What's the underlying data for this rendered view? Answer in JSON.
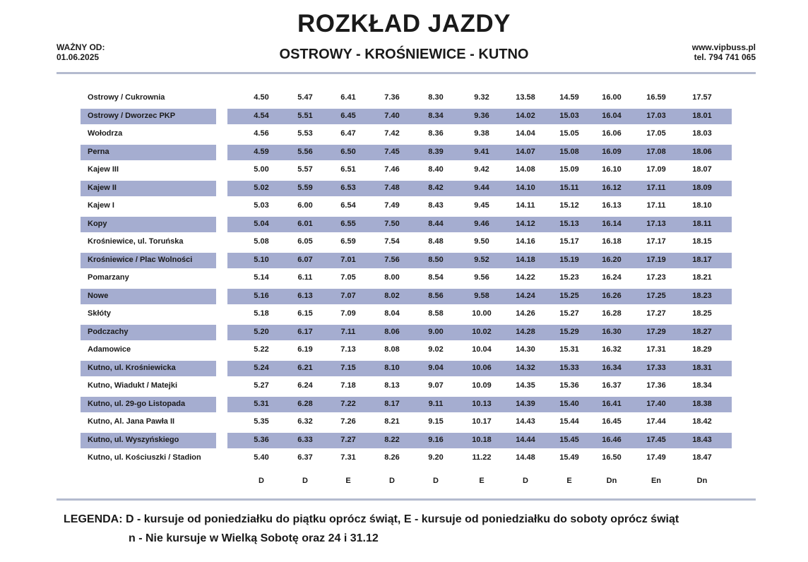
{
  "header": {
    "title": "ROZKŁAD JAZDY",
    "route": "OSTROWY - KROŚNIEWICE - KUTNO",
    "valid_label": "WAŻNY OD:",
    "valid_date": "01.06.2025",
    "website": "www.vipbuss.pl",
    "phone": "tel. 794 741 065"
  },
  "colors": {
    "row_shade": "#a5add0",
    "rule": "#b4bbcf"
  },
  "timetable": {
    "rows": [
      {
        "stop": "Ostrowy / Cukrownia",
        "times": [
          "4.50",
          "5.47",
          "6.41",
          "7.36",
          "8.30",
          "9.32",
          "13.58",
          "14.59",
          "16.00",
          "16.59",
          "17.57"
        ]
      },
      {
        "stop": "Ostrowy / Dworzec PKP",
        "times": [
          "4.54",
          "5.51",
          "6.45",
          "7.40",
          "8.34",
          "9.36",
          "14.02",
          "15.03",
          "16.04",
          "17.03",
          "18.01"
        ]
      },
      {
        "stop": "Wołodrza",
        "times": [
          "4.56",
          "5.53",
          "6.47",
          "7.42",
          "8.36",
          "9.38",
          "14.04",
          "15.05",
          "16.06",
          "17.05",
          "18.03"
        ]
      },
      {
        "stop": "Perna",
        "times": [
          "4.59",
          "5.56",
          "6.50",
          "7.45",
          "8.39",
          "9.41",
          "14.07",
          "15.08",
          "16.09",
          "17.08",
          "18.06"
        ]
      },
      {
        "stop": "Kajew III",
        "times": [
          "5.00",
          "5.57",
          "6.51",
          "7.46",
          "8.40",
          "9.42",
          "14.08",
          "15.09",
          "16.10",
          "17.09",
          "18.07"
        ]
      },
      {
        "stop": "Kajew II",
        "times": [
          "5.02",
          "5.59",
          "6.53",
          "7.48",
          "8.42",
          "9.44",
          "14.10",
          "15.11",
          "16.12",
          "17.11",
          "18.09"
        ]
      },
      {
        "stop": "Kajew I",
        "times": [
          "5.03",
          "6.00",
          "6.54",
          "7.49",
          "8.43",
          "9.45",
          "14.11",
          "15.12",
          "16.13",
          "17.11",
          "18.10"
        ]
      },
      {
        "stop": "Kopy",
        "times": [
          "5.04",
          "6.01",
          "6.55",
          "7.50",
          "8.44",
          "9.46",
          "14.12",
          "15.13",
          "16.14",
          "17.13",
          "18.11"
        ]
      },
      {
        "stop": "Krośniewice, ul. Toruńska",
        "times": [
          "5.08",
          "6.05",
          "6.59",
          "7.54",
          "8.48",
          "9.50",
          "14.16",
          "15.17",
          "16.18",
          "17.17",
          "18.15"
        ]
      },
      {
        "stop": "Krośniewice / Plac Wolności",
        "times": [
          "5.10",
          "6.07",
          "7.01",
          "7.56",
          "8.50",
          "9.52",
          "14.18",
          "15.19",
          "16.20",
          "17.19",
          "18.17"
        ]
      },
      {
        "stop": "Pomarzany",
        "times": [
          "5.14",
          "6.11",
          "7.05",
          "8.00",
          "8.54",
          "9.56",
          "14.22",
          "15.23",
          "16.24",
          "17.23",
          "18.21"
        ]
      },
      {
        "stop": "Nowe",
        "times": [
          "5.16",
          "6.13",
          "7.07",
          "8.02",
          "8.56",
          "9.58",
          "14.24",
          "15.25",
          "16.26",
          "17.25",
          "18.23"
        ]
      },
      {
        "stop": "Skłóty",
        "times": [
          "5.18",
          "6.15",
          "7.09",
          "8.04",
          "8.58",
          "10.00",
          "14.26",
          "15.27",
          "16.28",
          "17.27",
          "18.25"
        ]
      },
      {
        "stop": "Podczachy",
        "times": [
          "5.20",
          "6.17",
          "7.11",
          "8.06",
          "9.00",
          "10.02",
          "14.28",
          "15.29",
          "16.30",
          "17.29",
          "18.27"
        ]
      },
      {
        "stop": "Adamowice",
        "times": [
          "5.22",
          "6.19",
          "7.13",
          "8.08",
          "9.02",
          "10.04",
          "14.30",
          "15.31",
          "16.32",
          "17.31",
          "18.29"
        ]
      },
      {
        "stop": "Kutno, ul. Krośniewicka",
        "times": [
          "5.24",
          "6.21",
          "7.15",
          "8.10",
          "9.04",
          "10.06",
          "14.32",
          "15.33",
          "16.34",
          "17.33",
          "18.31"
        ]
      },
      {
        "stop": "Kutno, Wiadukt / Matejki",
        "times": [
          "5.27",
          "6.24",
          "7.18",
          "8.13",
          "9.07",
          "10.09",
          "14.35",
          "15.36",
          "16.37",
          "17.36",
          "18.34"
        ]
      },
      {
        "stop": "Kutno, ul. 29-go Listopada",
        "times": [
          "5.31",
          "6.28",
          "7.22",
          "8.17",
          "9.11",
          "10.13",
          "14.39",
          "15.40",
          "16.41",
          "17.40",
          "18.38"
        ]
      },
      {
        "stop": "Kutno, Al. Jana Pawła II",
        "times": [
          "5.35",
          "6.32",
          "7.26",
          "8.21",
          "9.15",
          "10.17",
          "14.43",
          "15.44",
          "16.45",
          "17.44",
          "18.42"
        ]
      },
      {
        "stop": "Kutno, ul. Wyszyńskiego",
        "times": [
          "5.36",
          "6.33",
          "7.27",
          "8.22",
          "9.16",
          "10.18",
          "14.44",
          "15.45",
          "16.46",
          "17.45",
          "18.43"
        ]
      },
      {
        "stop": "Kutno, ul. Kościuszki / Stadion",
        "times": [
          "5.40",
          "6.37",
          "7.31",
          "8.26",
          "9.20",
          "11.22",
          "14.48",
          "15.49",
          "16.50",
          "17.49",
          "18.47"
        ]
      }
    ],
    "codes": [
      "D",
      "D",
      "E",
      "D",
      "D",
      "E",
      "D",
      "E",
      "Dn",
      "En",
      "Dn"
    ]
  },
  "legend": {
    "line1": "LEGENDA: D - kursuje od poniedziałku do piątku oprócz świąt,  E - kursuje od poniedziałku do soboty oprócz świąt",
    "line2": "n - Nie kursuje w Wielką Sobotę oraz 24 i 31.12"
  }
}
